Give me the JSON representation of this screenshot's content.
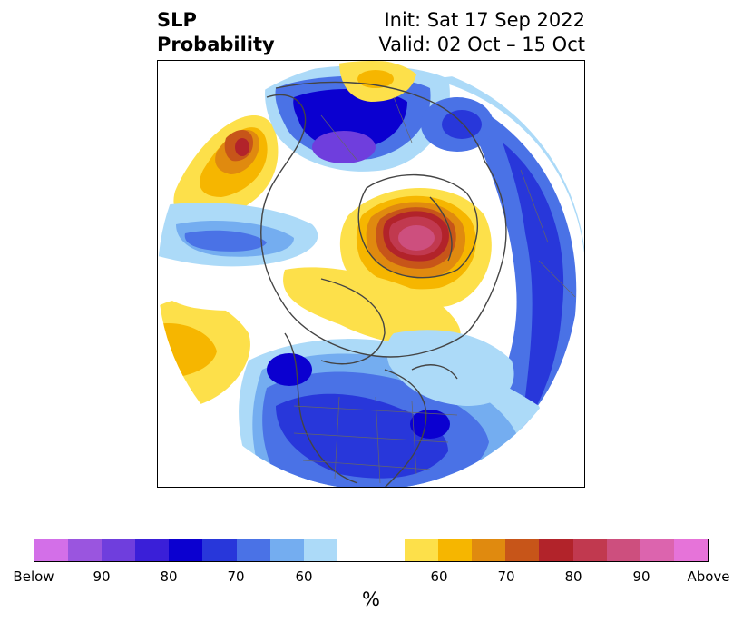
{
  "title": {
    "left_line1": "SLP",
    "left_line2": "Probability",
    "right_line1": "Init: Sat 17 Sep 2022",
    "right_line2": "Valid: 02 Oct – 15 Oct"
  },
  "colorbar": {
    "colors": [
      "#d36fe8",
      "#9a55df",
      "#6f3edd",
      "#3a1fd8",
      "#0b00d0",
      "#2837da",
      "#4a72e6",
      "#74adf0",
      "#acdaf8",
      "#ffffff",
      "#ffffff",
      "#fde04a",
      "#f6b600",
      "#e08a0f",
      "#c75519",
      "#b2232a",
      "#c1394f",
      "#cd4f7e",
      "#dc64ae",
      "#e673d9"
    ],
    "tick_labels": [
      "Below",
      "90",
      "80",
      "70",
      "60",
      "60",
      "70",
      "80",
      "90",
      "Above"
    ],
    "unit": "%"
  },
  "map": {
    "projection": "north-polar-stereographic",
    "features": [
      "coastlines",
      "country-borders",
      "state-borders"
    ],
    "icon": "north-polar-map"
  }
}
